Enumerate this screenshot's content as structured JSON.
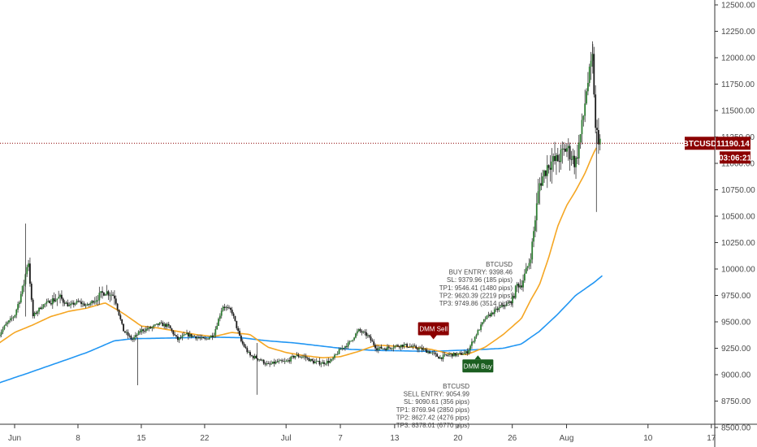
{
  "chart_data": {
    "type": "candlestick",
    "symbol": "BTCUSD",
    "last_price": "11190.14",
    "countdown": "03:06:21",
    "ylim": [
      8500,
      12500
    ],
    "y_ticks": [
      "12500.00",
      "12250.00",
      "12000.00",
      "11750.00",
      "11500.00",
      "11250.00",
      "11000.00",
      "10750.00",
      "10500.00",
      "10250.00",
      "10000.00",
      "9750.00",
      "9500.00",
      "9250.00",
      "9000.00",
      "8750.00",
      "8500.00"
    ],
    "x_ticks": [
      {
        "label": "Jun",
        "day": 0
      },
      {
        "label": "8",
        "day": 7
      },
      {
        "label": "15",
        "day": 14
      },
      {
        "label": "22",
        "day": 21
      },
      {
        "label": "Jul",
        "day": 30
      },
      {
        "label": "7",
        "day": 36
      },
      {
        "label": "13",
        "day": 42
      },
      {
        "label": "20",
        "day": 49
      },
      {
        "label": "26",
        "day": 55
      },
      {
        "label": "Aug",
        "day": 61
      },
      {
        "label": "10",
        "day": 70
      },
      {
        "label": "17",
        "day": 77
      }
    ],
    "x_start_day": -1.8,
    "x_end_day": 77.2,
    "price_line": 11190.14,
    "close_anchors": [
      [
        -1.7,
        9380
      ],
      [
        -1,
        9470
      ],
      [
        0,
        9560
      ],
      [
        1,
        9850
      ],
      [
        1.5,
        10100
      ],
      [
        2,
        9550
      ],
      [
        3,
        9650
      ],
      [
        4,
        9700
      ],
      [
        5,
        9730
      ],
      [
        6,
        9650
      ],
      [
        7,
        9690
      ],
      [
        8,
        9650
      ],
      [
        9,
        9720
      ],
      [
        10,
        9790
      ],
      [
        11,
        9750
      ],
      [
        12,
        9420
      ],
      [
        13,
        9330
      ],
      [
        14,
        9420
      ],
      [
        15,
        9440
      ],
      [
        16,
        9480
      ],
      [
        17,
        9460
      ],
      [
        18,
        9330
      ],
      [
        19,
        9380
      ],
      [
        20,
        9360
      ],
      [
        21,
        9330
      ],
      [
        22,
        9380
      ],
      [
        23,
        9650
      ],
      [
        24,
        9600
      ],
      [
        25,
        9320
      ],
      [
        26,
        9180
      ],
      [
        27,
        9150
      ],
      [
        28,
        9090
      ],
      [
        29,
        9120
      ],
      [
        30,
        9120
      ],
      [
        31,
        9180
      ],
      [
        32,
        9170
      ],
      [
        33,
        9120
      ],
      [
        34,
        9110
      ],
      [
        35,
        9130
      ],
      [
        36,
        9240
      ],
      [
        37,
        9300
      ],
      [
        38,
        9420
      ],
      [
        39,
        9370
      ],
      [
        40,
        9250
      ],
      [
        41,
        9250
      ],
      [
        42,
        9270
      ],
      [
        43,
        9280
      ],
      [
        44,
        9260
      ],
      [
        45,
        9240
      ],
      [
        46,
        9210
      ],
      [
        47,
        9160
      ],
      [
        48,
        9190
      ],
      [
        49,
        9190
      ],
      [
        50,
        9210
      ],
      [
        51,
        9380
      ],
      [
        52,
        9530
      ],
      [
        53,
        9600
      ],
      [
        54,
        9650
      ],
      [
        55,
        9700
      ],
      [
        55.5,
        9850
      ],
      [
        56,
        9850
      ],
      [
        57,
        10100
      ],
      [
        58,
        10800
      ],
      [
        59,
        11000
      ],
      [
        60,
        11030
      ],
      [
        61,
        11150
      ],
      [
        62,
        11000
      ],
      [
        62.8,
        11400
      ],
      [
        63.2,
        11700
      ],
      [
        63.9,
        12000
      ],
      [
        64.2,
        11300
      ],
      [
        64.8,
        11200
      ]
    ],
    "ema_fast_anchors": [
      [
        -1.7,
        9300
      ],
      [
        0,
        9400
      ],
      [
        2,
        9470
      ],
      [
        4,
        9550
      ],
      [
        6,
        9600
      ],
      [
        8,
        9630
      ],
      [
        10,
        9680
      ],
      [
        12,
        9580
      ],
      [
        14,
        9460
      ],
      [
        16,
        9440
      ],
      [
        18,
        9410
      ],
      [
        20,
        9380
      ],
      [
        22,
        9360
      ],
      [
        24,
        9400
      ],
      [
        26,
        9380
      ],
      [
        28,
        9260
      ],
      [
        30,
        9210
      ],
      [
        32,
        9180
      ],
      [
        34,
        9160
      ],
      [
        36,
        9170
      ],
      [
        38,
        9220
      ],
      [
        40,
        9280
      ],
      [
        42,
        9270
      ],
      [
        44,
        9260
      ],
      [
        46,
        9240
      ],
      [
        48,
        9200
      ],
      [
        50,
        9190
      ],
      [
        52,
        9260
      ],
      [
        54,
        9380
      ],
      [
        56,
        9530
      ],
      [
        57,
        9700
      ],
      [
        58,
        9850
      ],
      [
        59,
        10100
      ],
      [
        60,
        10400
      ],
      [
        61,
        10600
      ],
      [
        62,
        10740
      ],
      [
        63,
        10900
      ],
      [
        64,
        11100
      ],
      [
        64.5,
        11180
      ]
    ],
    "ema_slow_anchors": [
      [
        -1.8,
        8920
      ],
      [
        2,
        9030
      ],
      [
        5,
        9120
      ],
      [
        8,
        9210
      ],
      [
        11,
        9320
      ],
      [
        13,
        9340
      ],
      [
        16,
        9345
      ],
      [
        19,
        9350
      ],
      [
        22,
        9355
      ],
      [
        25,
        9350
      ],
      [
        28,
        9320
      ],
      [
        31,
        9300
      ],
      [
        34,
        9270
      ],
      [
        37,
        9240
      ],
      [
        40,
        9230
      ],
      [
        43,
        9225
      ],
      [
        46,
        9220
      ],
      [
        49,
        9230
      ],
      [
        52,
        9240
      ],
      [
        54,
        9250
      ],
      [
        56,
        9290
      ],
      [
        58,
        9410
      ],
      [
        60,
        9570
      ],
      [
        62,
        9750
      ],
      [
        64,
        9870
      ],
      [
        65,
        9940
      ]
    ],
    "colors": {
      "candle_up": "#2e7d32",
      "candle_down": "#1b1b1b",
      "wick": "#333333",
      "ema_fast": "#f5a623",
      "ema_slow": "#2196f3",
      "price_line": "#8b0000",
      "price_tag": "#8b0000",
      "countdown_tag": "#8b0000",
      "sell_tag": "#8b0000",
      "buy_tag": "#1b5e20"
    },
    "buy_annotation": {
      "lines": [
        "BTCUSD",
        "BUY ENTRY: 9398.46",
        "SL: 9379.96 (185 pips)",
        "TP1: 9546.41 (1480 pips)",
        "TP2: 9620.39 (2219 pips)",
        "TP3: 9749.86 (3514 pips)"
      ]
    },
    "sell_annotation": {
      "lines": [
        "BTCUSD",
        "SELL ENTRY: 9054.99",
        "SL: 9090.61 (356 pips)",
        "TP1: 8769.94 (2850 pips)",
        "TP2: 8627.42 (4276 pips)",
        "TP3: 8378.01 (6770 pips)"
      ]
    },
    "signals": [
      {
        "label": "DMM Sell",
        "day": 46.2,
        "price": 9265
      },
      {
        "label": "DMM Buy",
        "day": 51.2,
        "price": 9175
      }
    ]
  }
}
